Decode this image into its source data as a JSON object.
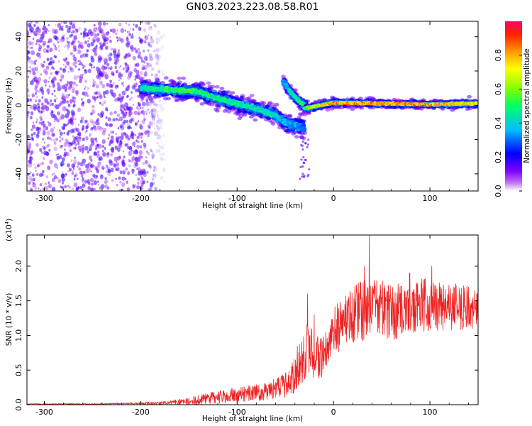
{
  "title": "GN03.2023.223.08.58.R01",
  "colors": {
    "background": "#ffffff",
    "axis": "#000000",
    "snr_line": "#ee2222",
    "colormap": [
      "#ffffff",
      "#c070f0",
      "#7a00ff",
      "#0000ff",
      "#00bfff",
      "#00ff66",
      "#7fff00",
      "#ffff00",
      "#ff9900",
      "#ff2200",
      "#ff0066"
    ]
  },
  "chart_data": [
    {
      "type": "heatmap",
      "name": "spectrogram",
      "xlabel": "Height of straight line (km)",
      "ylabel": "Frequency (Hz)",
      "xlim": [
        -318,
        150
      ],
      "ylim": [
        -50,
        49
      ],
      "xticks": [
        "-300",
        "-200",
        "-100",
        "0",
        "100"
      ],
      "xtick_values": [
        -300,
        -200,
        -100,
        0,
        100
      ],
      "yticks": [
        "-40",
        "-20",
        "0",
        "20",
        "40"
      ],
      "ytick_values": [
        -40,
        -20,
        0,
        20,
        40
      ],
      "colorbar": {
        "label": "Normalized spectral amplitude",
        "range": [
          0.0,
          1.0
        ],
        "ticks": [
          "0.0",
          "0.2",
          "0.4",
          "0.6",
          "0.8"
        ],
        "tick_values": [
          0.0,
          0.2,
          0.4,
          0.6,
          0.8
        ]
      },
      "noise_region": {
        "x_range": [
          -318,
          -175
        ],
        "freq_range": [
          -50,
          49
        ],
        "amplitude": 0.18
      },
      "ridge": [
        {
          "x": -200,
          "freq": 10,
          "amplitude": 0.45
        },
        {
          "x": -170,
          "freq": 9,
          "amplitude": 0.55
        },
        {
          "x": -140,
          "freq": 8,
          "amplitude": 0.55
        },
        {
          "x": -120,
          "freq": 4,
          "amplitude": 0.5
        },
        {
          "x": -100,
          "freq": 1,
          "amplitude": 0.5
        },
        {
          "x": -80,
          "freq": -2,
          "amplitude": 0.45
        },
        {
          "x": -60,
          "freq": -6,
          "amplitude": 0.45
        },
        {
          "x": -50,
          "freq": -10,
          "amplitude": 0.4
        },
        {
          "x": -30,
          "freq": -13,
          "amplitude": 0.3
        }
      ],
      "branch": [
        {
          "x": -52,
          "freq": 14,
          "amplitude": 0.35
        },
        {
          "x": -45,
          "freq": 8,
          "amplitude": 0.45
        },
        {
          "x": -35,
          "freq": 2,
          "amplitude": 0.5
        },
        {
          "x": -25,
          "freq": -2,
          "amplitude": 0.55
        }
      ],
      "steady_line": [
        {
          "x": -30,
          "freq": -2,
          "amplitude": 0.6
        },
        {
          "x": 0,
          "freq": 1.5,
          "amplitude": 0.85
        },
        {
          "x": 50,
          "freq": 1,
          "amplitude": 0.85
        },
        {
          "x": 100,
          "freq": 0.5,
          "amplitude": 0.85
        },
        {
          "x": 150,
          "freq": 1,
          "amplitude": 0.75
        }
      ]
    },
    {
      "type": "line",
      "name": "snr",
      "xlabel": "Height of straight line (km)",
      "ylabel": "SNR (10 * v/v)",
      "scale_label": "(x10",
      "scale_exponent": "4",
      "scale_suffix": ")",
      "xlim": [
        -318,
        150
      ],
      "ylim": [
        0,
        2.45
      ],
      "xticks": [
        "-300",
        "-200",
        "-100",
        "0",
        "100"
      ],
      "xtick_values": [
        -300,
        -200,
        -100,
        0,
        100
      ],
      "yticks": [
        "0.0",
        "0.5",
        "1.0",
        "1.5",
        "2.0"
      ],
      "ytick_values": [
        0.0,
        0.5,
        1.0,
        1.5,
        2.0
      ],
      "envelope": {
        "x": [
          -318,
          -250,
          -200,
          -170,
          -150,
          -130,
          -110,
          -90,
          -70,
          -55,
          -45,
          -40,
          -35,
          -30,
          -25,
          -20,
          -15,
          -10,
          -5,
          0,
          10,
          20,
          30,
          40,
          60,
          80,
          100,
          120,
          150
        ],
        "mean": [
          0.01,
          0.01,
          0.02,
          0.03,
          0.05,
          0.09,
          0.13,
          0.16,
          0.19,
          0.25,
          0.3,
          0.45,
          0.65,
          0.75,
          0.75,
          0.72,
          0.68,
          0.72,
          0.88,
          1.05,
          1.2,
          1.3,
          1.35,
          1.4,
          1.35,
          1.38,
          1.45,
          1.42,
          1.4
        ],
        "noise": [
          0.005,
          0.006,
          0.01,
          0.02,
          0.04,
          0.06,
          0.07,
          0.08,
          0.09,
          0.12,
          0.15,
          0.2,
          0.25,
          0.3,
          0.28,
          0.25,
          0.22,
          0.22,
          0.22,
          0.25,
          0.28,
          0.3,
          0.32,
          0.3,
          0.3,
          0.3,
          0.28,
          0.25,
          0.22
        ]
      },
      "peaks": [
        {
          "x": 37,
          "y": 2.45
        },
        {
          "x": -27,
          "y": 1.6
        },
        {
          "x": -20,
          "y": 1.3
        },
        {
          "x": 32,
          "y": 2.0
        },
        {
          "x": 102,
          "y": 2.0
        },
        {
          "x": 79,
          "y": 1.9
        }
      ]
    }
  ]
}
